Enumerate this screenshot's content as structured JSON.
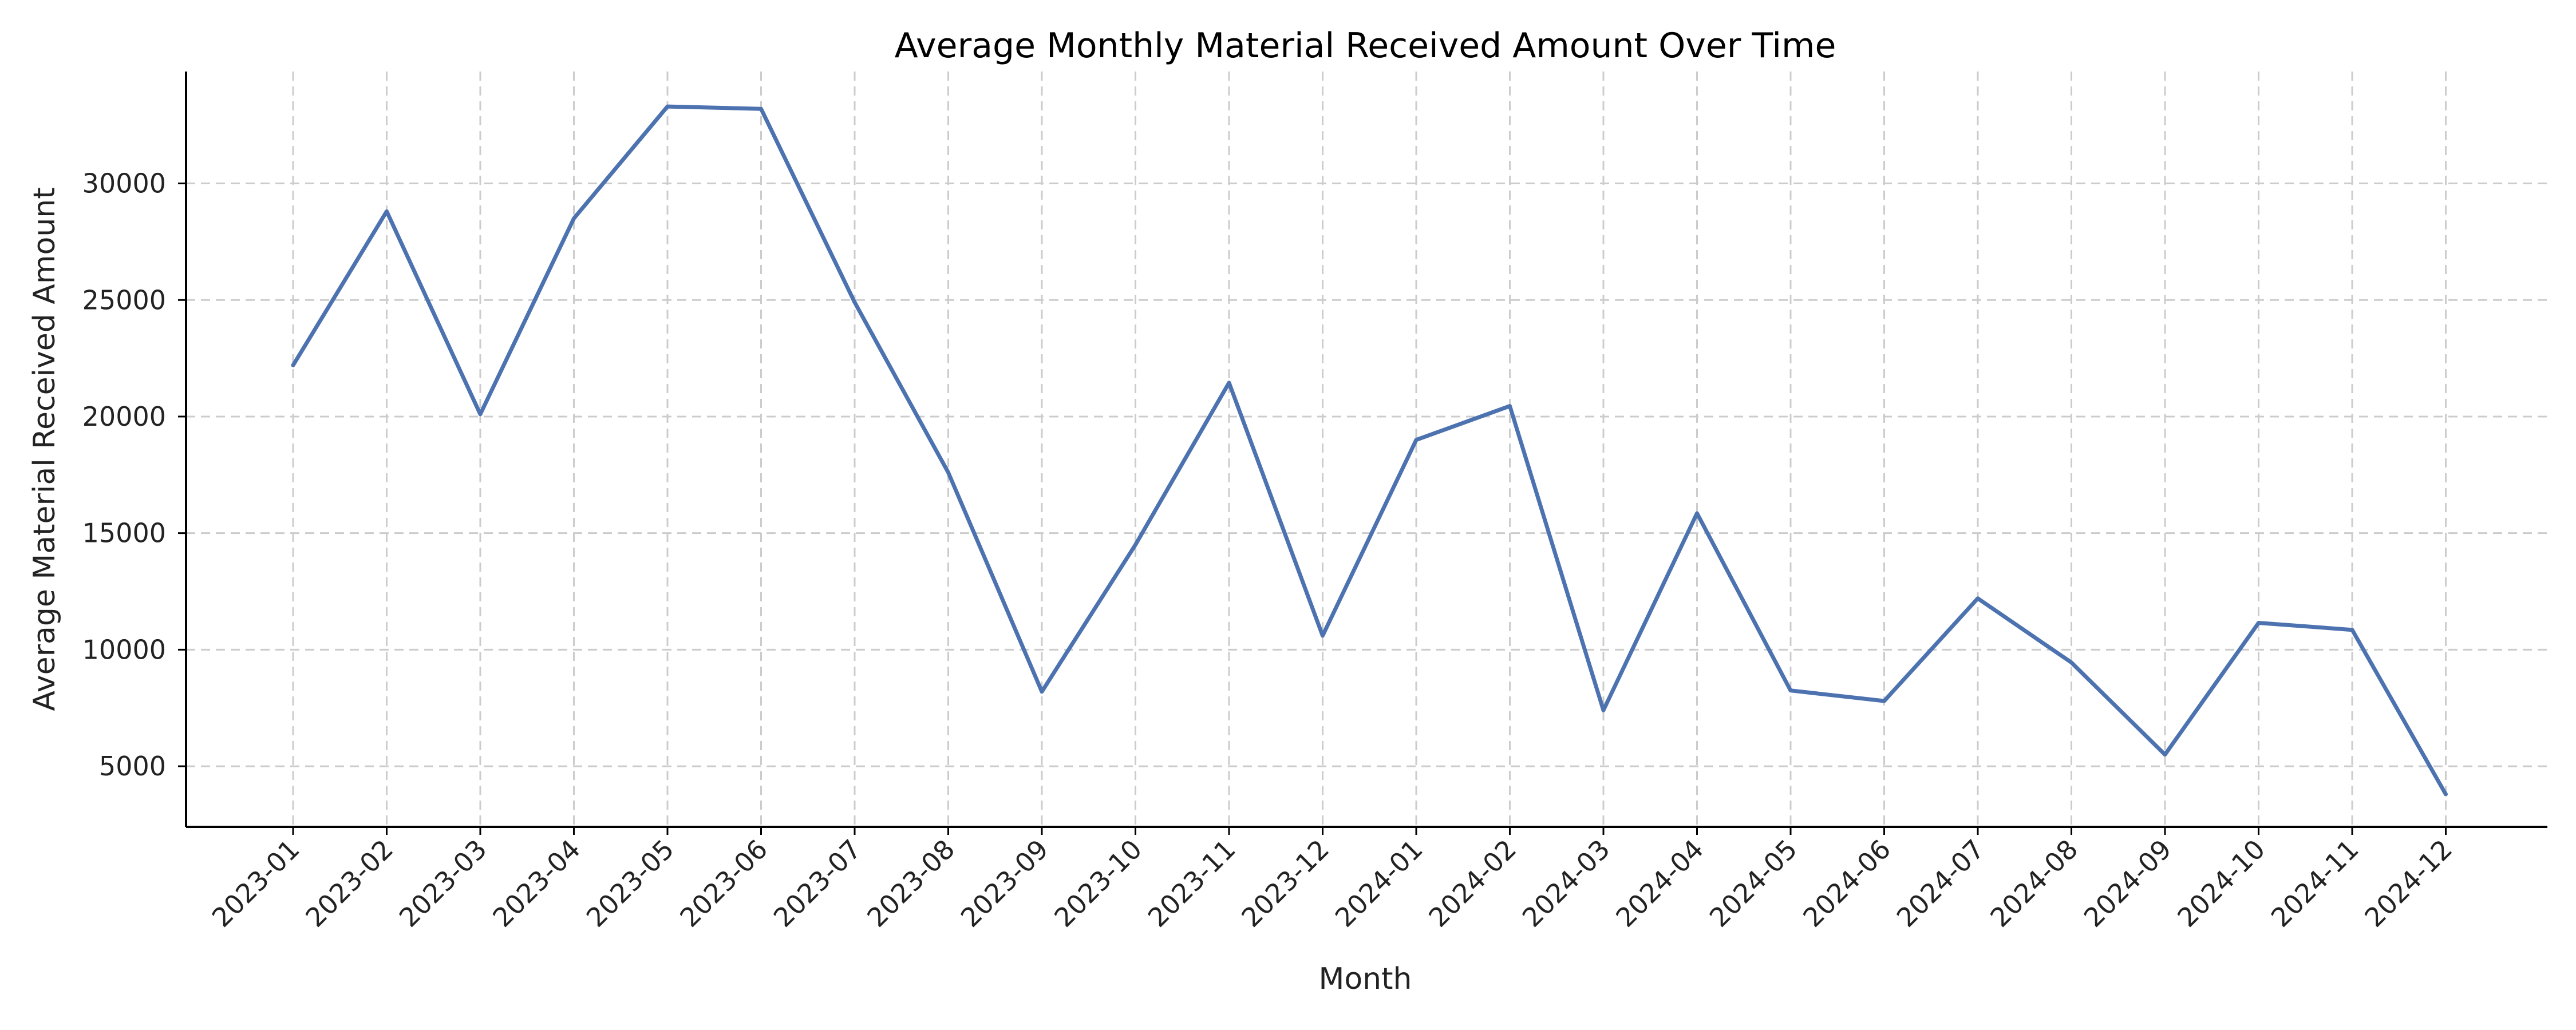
{
  "chart_data": {
    "type": "line",
    "title": "Average Monthly Material Received Amount Over Time",
    "xlabel": "Month",
    "ylabel": "Average Material Received Amount",
    "x": [
      "2023-01",
      "2023-02",
      "2023-03",
      "2023-04",
      "2023-05",
      "2023-06",
      "2023-07",
      "2023-08",
      "2023-09",
      "2023-10",
      "2023-11",
      "2023-12",
      "2024-01",
      "2024-02",
      "2024-03",
      "2024-04",
      "2024-05",
      "2024-06",
      "2024-07",
      "2024-08",
      "2024-09",
      "2024-10",
      "2024-11",
      "2024-12"
    ],
    "series": [
      {
        "color": "#4c72b0",
        "values": [
          22200,
          28800,
          20100,
          28500,
          33300,
          33200,
          24900,
          17600,
          8200,
          14500,
          21450,
          10600,
          19000,
          20450,
          7400,
          15850,
          8250,
          7800,
          12200,
          9450,
          5500,
          11150,
          10850,
          3800
        ]
      }
    ],
    "yticks": [
      5000,
      10000,
      15000,
      20000,
      25000,
      30000
    ],
    "ylim": [
      2400,
      34800
    ],
    "grid": true,
    "legend": "none"
  }
}
